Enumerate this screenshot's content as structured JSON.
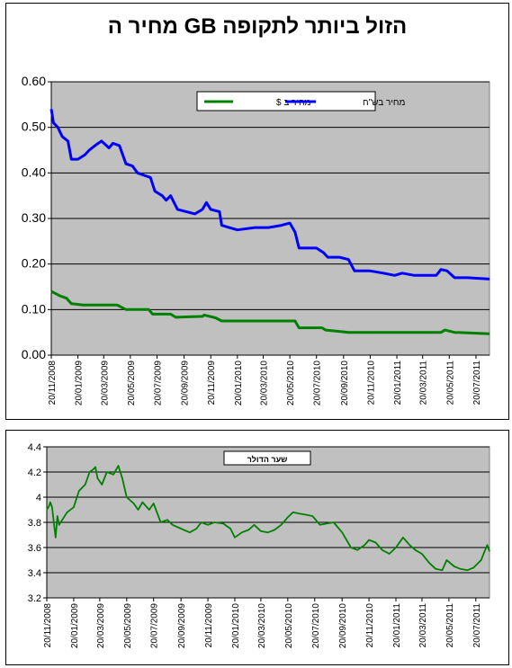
{
  "chart_data": [
    {
      "type": "line",
      "title": "מחיר ה GB הזול ביותר לתקופה",
      "ylim": [
        0,
        0.6
      ],
      "yticks": [
        "0.00",
        "0.10",
        "0.20",
        "0.30",
        "0.40",
        "0.50",
        "0.60"
      ],
      "x_tick_labels": [
        "20/11/2008",
        "20/01/2009",
        "20/03/2009",
        "20/05/2009",
        "20/07/2009",
        "20/09/2009",
        "20/11/2009",
        "20/01/2010",
        "20/03/2010",
        "20/05/2010",
        "20/07/2010",
        "20/09/2010",
        "20/11/2010",
        "20/01/2011",
        "20/03/2011",
        "20/05/2011",
        "20/07/2011"
      ],
      "x_range": [
        "20/11/2008",
        "20/08/2011"
      ],
      "grid": "horizontal",
      "legend_position": "top-right",
      "series": [
        {
          "name": "מחיר בש\"ח",
          "color": "#0000ff",
          "points": [
            [
              "20/11/2008",
              0.54
            ],
            [
              "25/11/2008",
              0.51
            ],
            [
              "05/12/2008",
              0.5
            ],
            [
              "15/12/2008",
              0.48
            ],
            [
              "28/12/2008",
              0.47
            ],
            [
              "05/01/2009",
              0.43
            ],
            [
              "20/01/2009",
              0.43
            ],
            [
              "05/02/2009",
              0.44
            ],
            [
              "15/02/2009",
              0.45
            ],
            [
              "28/02/2009",
              0.46
            ],
            [
              "15/03/2009",
              0.47
            ],
            [
              "01/04/2009",
              0.455
            ],
            [
              "10/04/2009",
              0.465
            ],
            [
              "25/04/2009",
              0.46
            ],
            [
              "10/05/2009",
              0.42
            ],
            [
              "25/05/2009",
              0.415
            ],
            [
              "05/06/2009",
              0.4
            ],
            [
              "20/06/2009",
              0.395
            ],
            [
              "05/07/2009",
              0.39
            ],
            [
              "15/07/2009",
              0.36
            ],
            [
              "01/08/2009",
              0.35
            ],
            [
              "10/08/2009",
              0.34
            ],
            [
              "20/08/2009",
              0.35
            ],
            [
              "05/09/2009",
              0.32
            ],
            [
              "25/09/2009",
              0.315
            ],
            [
              "15/10/2009",
              0.31
            ],
            [
              "01/11/2009",
              0.32
            ],
            [
              "10/11/2009",
              0.335
            ],
            [
              "20/11/2009",
              0.32
            ],
            [
              "10/12/2009",
              0.315
            ],
            [
              "15/12/2009",
              0.285
            ],
            [
              "01/01/2010",
              0.28
            ],
            [
              "20/01/2010",
              0.275
            ],
            [
              "01/03/2010",
              0.28
            ],
            [
              "01/04/2010",
              0.28
            ],
            [
              "01/05/2010",
              0.285
            ],
            [
              "20/05/2010",
              0.29
            ],
            [
              "01/06/2010",
              0.27
            ],
            [
              "10/06/2010",
              0.235
            ],
            [
              "20/07/2010",
              0.235
            ],
            [
              "05/08/2010",
              0.225
            ],
            [
              "15/08/2010",
              0.215
            ],
            [
              "10/09/2010",
              0.215
            ],
            [
              "01/10/2010",
              0.21
            ],
            [
              "15/10/2010",
              0.185
            ],
            [
              "20/11/2010",
              0.185
            ],
            [
              "20/12/2010",
              0.18
            ],
            [
              "15/01/2011",
              0.175
            ],
            [
              "01/02/2011",
              0.18
            ],
            [
              "01/03/2011",
              0.175
            ],
            [
              "20/04/2011",
              0.175
            ],
            [
              "01/05/2011",
              0.188
            ],
            [
              "15/05/2011",
              0.185
            ],
            [
              "01/06/2011",
              0.17
            ],
            [
              "01/07/2011",
              0.17
            ],
            [
              "20/08/2011",
              0.167
            ]
          ]
        },
        {
          "name": "מחיר ב $",
          "color": "#008000",
          "points": [
            [
              "20/11/2008",
              0.14
            ],
            [
              "10/12/2008",
              0.13
            ],
            [
              "25/12/2008",
              0.125
            ],
            [
              "05/01/2009",
              0.113
            ],
            [
              "01/02/2009",
              0.11
            ],
            [
              "20/04/2009",
              0.11
            ],
            [
              "10/05/2009",
              0.1
            ],
            [
              "01/07/2009",
              0.1
            ],
            [
              "10/07/2009",
              0.09
            ],
            [
              "20/08/2009",
              0.09
            ],
            [
              "01/09/2009",
              0.083
            ],
            [
              "01/11/2009",
              0.085
            ],
            [
              "05/11/2009",
              0.088
            ],
            [
              "01/12/2009",
              0.082
            ],
            [
              "15/12/2009",
              0.075
            ],
            [
              "01/06/2010",
              0.075
            ],
            [
              "10/06/2010",
              0.06
            ],
            [
              "01/08/2010",
              0.06
            ],
            [
              "10/08/2010",
              0.055
            ],
            [
              "01/10/2010",
              0.05
            ],
            [
              "01/12/2010",
              0.05
            ],
            [
              "01/05/2011",
              0.05
            ],
            [
              "10/05/2011",
              0.055
            ],
            [
              "01/06/2011",
              0.05
            ],
            [
              "20/08/2011",
              0.047
            ]
          ]
        }
      ]
    },
    {
      "type": "line",
      "title": "שער הדולר",
      "ylim": [
        3.2,
        4.4
      ],
      "yticks": [
        "3.2",
        "3.4",
        "3.6",
        "3.8",
        "4",
        "4.2",
        "4.4"
      ],
      "x_tick_labels": [
        "20/11/2008",
        "20/01/2009",
        "20/03/2009",
        "20/05/2009",
        "20/07/2009",
        "20/09/2009",
        "20/11/2009",
        "20/01/2010",
        "20/03/2010",
        "20/05/2010",
        "20/07/2010",
        "20/09/2010",
        "20/11/2010",
        "20/01/2011",
        "20/03/2011",
        "20/05/2011",
        "20/07/2011"
      ],
      "x_range": [
        "20/11/2008",
        "20/08/2011"
      ],
      "grid": "horizontal",
      "legend_position": "top-left",
      "series": [
        {
          "name": "שער הדולר",
          "color": "#008000",
          "points": [
            [
              "20/11/2008",
              3.9
            ],
            [
              "25/11/2008",
              3.93
            ],
            [
              "28/11/2008",
              3.96
            ],
            [
              "02/12/2008",
              3.92
            ],
            [
              "06/12/2008",
              3.8
            ],
            [
              "10/12/2008",
              3.68
            ],
            [
              "14/12/2008",
              3.85
            ],
            [
              "18/12/2008",
              3.78
            ],
            [
              "25/12/2008",
              3.82
            ],
            [
              "05/01/2009",
              3.88
            ],
            [
              "20/01/2009",
              3.92
            ],
            [
              "01/02/2009",
              4.05
            ],
            [
              "15/02/2009",
              4.1
            ],
            [
              "25/02/2009",
              4.2
            ],
            [
              "05/03/2009",
              4.22
            ],
            [
              "10/03/2009",
              4.24
            ],
            [
              "15/03/2009",
              4.15
            ],
            [
              "25/03/2009",
              4.1
            ],
            [
              "05/04/2009",
              4.2
            ],
            [
              "20/04/2009",
              4.18
            ],
            [
              "01/05/2009",
              4.25
            ],
            [
              "10/05/2009",
              4.15
            ],
            [
              "20/05/2009",
              4.0
            ],
            [
              "05/06/2009",
              3.95
            ],
            [
              "15/06/2009",
              3.9
            ],
            [
              "25/06/2009",
              3.96
            ],
            [
              "10/07/2009",
              3.9
            ],
            [
              "20/07/2009",
              3.95
            ],
            [
              "05/08/2009",
              3.8
            ],
            [
              "20/08/2009",
              3.82
            ],
            [
              "01/09/2009",
              3.78
            ],
            [
              "20/09/2009",
              3.75
            ],
            [
              "10/10/2009",
              3.72
            ],
            [
              "25/10/2009",
              3.75
            ],
            [
              "05/11/2009",
              3.8
            ],
            [
              "20/11/2009",
              3.78
            ],
            [
              "05/12/2009",
              3.8
            ],
            [
              "25/12/2009",
              3.79
            ],
            [
              "10/01/2010",
              3.75
            ],
            [
              "20/01/2010",
              3.68
            ],
            [
              "05/02/2010",
              3.72
            ],
            [
              "20/02/2010",
              3.74
            ],
            [
              "05/03/2010",
              3.78
            ],
            [
              "20/03/2010",
              3.73
            ],
            [
              "05/04/2010",
              3.72
            ],
            [
              "20/04/2010",
              3.74
            ],
            [
              "05/05/2010",
              3.78
            ],
            [
              "20/05/2010",
              3.84
            ],
            [
              "01/06/2010",
              3.88
            ],
            [
              "15/06/2010",
              3.87
            ],
            [
              "01/07/2010",
              3.86
            ],
            [
              "15/07/2010",
              3.85
            ],
            [
              "01/08/2010",
              3.78
            ],
            [
              "15/08/2010",
              3.79
            ],
            [
              "01/09/2010",
              3.8
            ],
            [
              "20/09/2010",
              3.72
            ],
            [
              "10/10/2010",
              3.6
            ],
            [
              "25/10/2010",
              3.58
            ],
            [
              "10/11/2010",
              3.62
            ],
            [
              "20/11/2010",
              3.66
            ],
            [
              "05/12/2010",
              3.64
            ],
            [
              "20/12/2010",
              3.58
            ],
            [
              "05/01/2011",
              3.55
            ],
            [
              "20/01/2011",
              3.6
            ],
            [
              "05/02/2011",
              3.68
            ],
            [
              "20/02/2011",
              3.62
            ],
            [
              "05/03/2011",
              3.58
            ],
            [
              "20/03/2011",
              3.55
            ],
            [
              "05/04/2011",
              3.48
            ],
            [
              "20/04/2011",
              3.43
            ],
            [
              "05/05/2011",
              3.42
            ],
            [
              "15/05/2011",
              3.5
            ],
            [
              "01/06/2011",
              3.45
            ],
            [
              "15/06/2011",
              3.43
            ],
            [
              "01/07/2011",
              3.42
            ],
            [
              "15/07/2011",
              3.44
            ],
            [
              "01/08/2011",
              3.5
            ],
            [
              "10/08/2011",
              3.58
            ],
            [
              "15/08/2011",
              3.62
            ],
            [
              "20/08/2011",
              3.57
            ]
          ]
        }
      ]
    }
  ]
}
